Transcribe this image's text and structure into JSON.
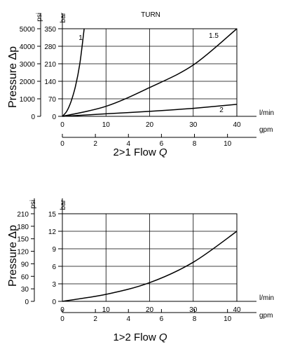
{
  "chart_data": [
    {
      "type": "line",
      "title": "TURN",
      "ylabel": "Pressure Δp",
      "left_unit": "psi",
      "left_ticks": [
        "5000",
        "4000",
        "3000",
        "2000",
        "1000",
        "0"
      ],
      "bar_unit": "bar",
      "bar_ticks": [
        "350",
        "280",
        "210",
        "140",
        "70",
        "0"
      ],
      "ylim": [
        0,
        350
      ],
      "flow_unit": "l/min",
      "flow_ticks": [
        "0",
        "10",
        "20",
        "30",
        "40"
      ],
      "xlim": [
        0,
        40
      ],
      "gpm_unit": "gpm",
      "gpm_ticks": [
        "0",
        "2",
        "4",
        "6",
        "8",
        "10"
      ],
      "caption_prefix": "2>1",
      "caption_label": "Flow",
      "caption_var": "Q",
      "series": [
        {
          "name": "1",
          "x": [
            0,
            1,
            2,
            3,
            4,
            5
          ],
          "y": [
            0,
            20,
            60,
            120,
            210,
            350
          ]
        },
        {
          "name": "1.5",
          "x": [
            0,
            10,
            20,
            30,
            40
          ],
          "y": [
            0,
            40,
            115,
            205,
            350
          ]
        },
        {
          "name": "2",
          "x": [
            0,
            10,
            20,
            30,
            40
          ],
          "y": [
            0,
            10,
            20,
            32,
            48
          ]
        }
      ]
    },
    {
      "type": "line",
      "ylabel": "Pressure Δp",
      "left_unit": "psi",
      "left_ticks": [
        "210",
        "180",
        "150",
        "120",
        "90",
        "60",
        "30",
        "0"
      ],
      "bar_unit": "bar",
      "bar_ticks": [
        "15",
        "12",
        "9",
        "6",
        "3",
        "0"
      ],
      "ylim": [
        0,
        15
      ],
      "flow_unit": "l/min",
      "flow_ticks": [
        "0",
        "10",
        "20",
        "30",
        "40"
      ],
      "xlim": [
        0,
        40
      ],
      "gpm_unit": "gpm",
      "gpm_ticks": [
        "0",
        "2",
        "4",
        "6",
        "8",
        "10"
      ],
      "caption_prefix": "1>2",
      "caption_label": "Flow",
      "caption_var": "Q",
      "series": [
        {
          "x": [
            0,
            10,
            20,
            30,
            40
          ],
          "y": [
            0,
            1.2,
            3.2,
            6.7,
            12
          ]
        }
      ]
    }
  ]
}
